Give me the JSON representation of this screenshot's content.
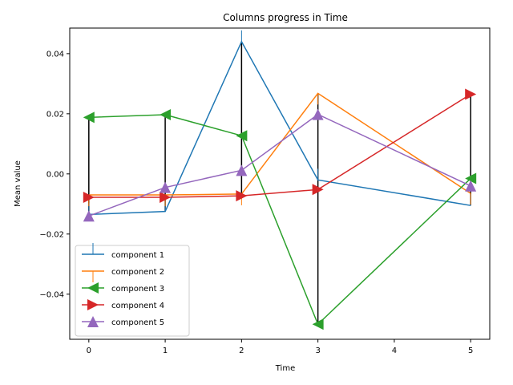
{
  "chart_data": {
    "type": "line",
    "title": "Columns progress in Time",
    "xlabel": "Time",
    "ylabel": "Mean value",
    "xlim": [
      -0.25,
      5.25
    ],
    "ylim": [
      -0.055,
      0.0485
    ],
    "xticks": [
      0,
      1,
      2,
      3,
      4,
      5
    ],
    "yticks": [
      -0.04,
      -0.02,
      0.0,
      0.02,
      0.04
    ],
    "ytick_labels": [
      "−0.04",
      "−0.02",
      "0.00",
      "0.02",
      "0.04"
    ],
    "grid": false,
    "legend_position": "lower-left",
    "x": [
      0,
      1,
      2,
      3,
      5
    ],
    "series": [
      {
        "name": "component 1",
        "color": "#1f77b4",
        "marker": "vline",
        "values": [
          -0.0135,
          -0.0125,
          0.044,
          -0.002,
          -0.0105
        ]
      },
      {
        "name": "component 2",
        "color": "#ff7f0e",
        "marker": "tickdown",
        "values": [
          -0.007,
          -0.007,
          -0.0067,
          0.0268,
          -0.0065
        ]
      },
      {
        "name": "component 3",
        "color": "#2ca02c",
        "marker": "triangle-left",
        "values": [
          0.0188,
          0.0197,
          0.0127,
          -0.05,
          -0.0015
        ]
      },
      {
        "name": "component 4",
        "color": "#d62728",
        "marker": "triangle-right",
        "values": [
          -0.0078,
          -0.0078,
          -0.0073,
          -0.0052,
          0.0265
        ]
      },
      {
        "name": "component 5",
        "color": "#9467bd",
        "marker": "triangle-up",
        "values": [
          -0.014,
          -0.0045,
          0.0012,
          0.0198,
          -0.004
        ]
      }
    ]
  }
}
